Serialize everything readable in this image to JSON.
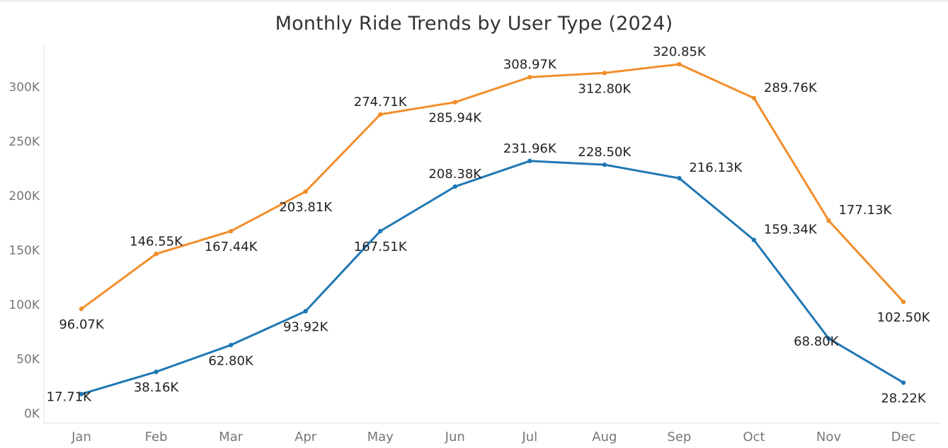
{
  "title": "Monthly Ride Trends by User Type (2024)",
  "colors": {
    "orange": "#F28E2B",
    "blue": "#1F77B4",
    "axis": "#e0e0e0",
    "tick": "#777777",
    "label": "#222222"
  },
  "chart_data": {
    "type": "line",
    "title": "Monthly Ride Trends by User Type (2024)",
    "xlabel": "",
    "ylabel": "",
    "categories": [
      "Jan",
      "Feb",
      "Mar",
      "Apr",
      "May",
      "Jun",
      "Jul",
      "Aug",
      "Sep",
      "Oct",
      "Nov",
      "Dec"
    ],
    "yticks": [
      {
        "value": 0,
        "label": "0K"
      },
      {
        "value": 50000,
        "label": "50K"
      },
      {
        "value": 100000,
        "label": "100K"
      },
      {
        "value": 150000,
        "label": "150K"
      },
      {
        "value": 200000,
        "label": "200K"
      },
      {
        "value": 250000,
        "label": "250K"
      },
      {
        "value": 300000,
        "label": "300K"
      }
    ],
    "ylim": [
      0,
      340000
    ],
    "grid": false,
    "legend": "none",
    "series": [
      {
        "color": "#F28E2B",
        "values": [
          96070,
          146550,
          167440,
          203810,
          274710,
          285940,
          308970,
          312800,
          320850,
          289760,
          177130,
          102500
        ],
        "labels": [
          "96.07K",
          "146.55K",
          "167.44K",
          "203.81K",
          "274.71K",
          "285.94K",
          "308.97K",
          "312.80K",
          "320.85K",
          "289.76K",
          "177.13K",
          "102.50K"
        ],
        "label_pos": [
          "below",
          "above",
          "below",
          "below",
          "above",
          "below",
          "above",
          "below",
          "above",
          "right",
          "right",
          "below"
        ]
      },
      {
        "color": "#1F77B4",
        "values": [
          17710,
          38160,
          62800,
          93920,
          167510,
          208380,
          231960,
          228500,
          216130,
          159340,
          68800,
          28220
        ],
        "labels": [
          "17.71K",
          "38.16K",
          "62.80K",
          "93.92K",
          "167.51K",
          "208.38K",
          "231.96K",
          "228.50K",
          "216.13K",
          "159.34K",
          "68.80K",
          "28.22K"
        ],
        "label_pos": [
          "left",
          "below",
          "below",
          "below",
          "below",
          "above",
          "above",
          "above",
          "right",
          "right",
          "left",
          "below"
        ]
      }
    ]
  }
}
